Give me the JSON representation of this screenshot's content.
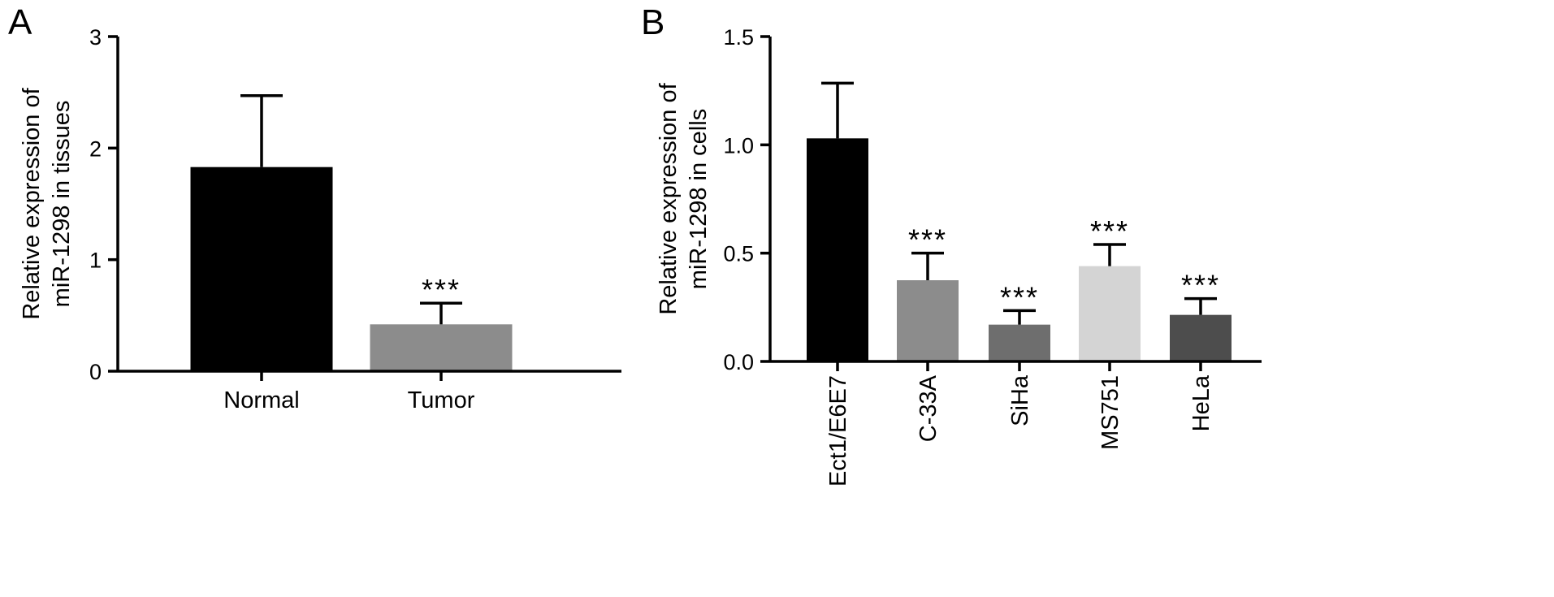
{
  "chart_data": [
    {
      "panel": "A",
      "type": "bar",
      "categories": [
        "Normal",
        "Tumor"
      ],
      "values": [
        1.83,
        0.42
      ],
      "errors": [
        0.64,
        0.19
      ],
      "significance": [
        "",
        "***"
      ],
      "colors": [
        "#000000",
        "#8c8c8c"
      ],
      "title": "",
      "xlabel": "",
      "ylabel": [
        "Relative expression of",
        "miR-1298 in tissues"
      ],
      "ylim": [
        0,
        3
      ],
      "yticks": [
        0,
        1,
        2,
        3
      ],
      "ytick_labels": [
        "0",
        "1",
        "2",
        "3"
      ],
      "grid": false
    },
    {
      "panel": "B",
      "type": "bar",
      "categories": [
        "Ect1/E6E7",
        "C-33A",
        "SiHa",
        "MS751",
        "HeLa"
      ],
      "values": [
        1.03,
        0.375,
        0.17,
        0.44,
        0.215
      ],
      "errors": [
        0.255,
        0.125,
        0.065,
        0.1,
        0.075
      ],
      "significance": [
        "",
        "***",
        "***",
        "***",
        "***"
      ],
      "colors": [
        "#000000",
        "#8c8c8c",
        "#6e6e6e",
        "#d4d4d4",
        "#4d4d4d"
      ],
      "title": "",
      "xlabel": "",
      "ylabel": [
        "Relative expression of",
        "miR-1298 in cells"
      ],
      "ylim": [
        0,
        1.5
      ],
      "yticks": [
        0,
        0.5,
        1.0,
        1.5
      ],
      "ytick_labels": [
        "0.0",
        "0.5",
        "1.0",
        "1.5"
      ],
      "grid": false
    }
  ]
}
